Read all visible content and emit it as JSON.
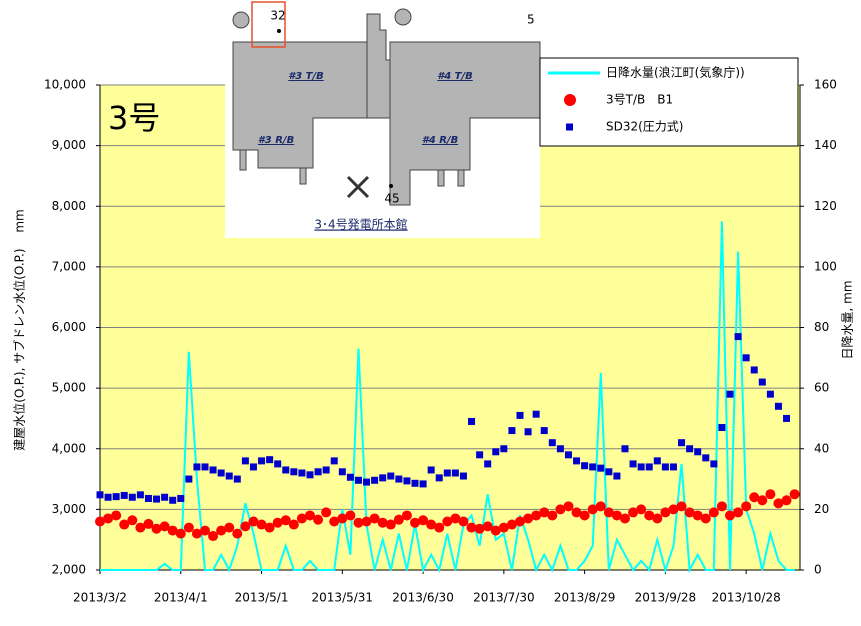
{
  "chart_data": {
    "type": "line",
    "annotation": "3号",
    "ylabel": "建屋水位(O.P.), サブドレン水位(O.P.)　 mm",
    "y2label": "日降水量, mm",
    "xlim": [
      "2013-03-02",
      "2013-11-17"
    ],
    "xticks": [
      {
        "value": "2013-03-02",
        "label": "2013/3/2"
      },
      {
        "value": "2013-04-01",
        "label": "2013/4/1"
      },
      {
        "value": "2013-05-01",
        "label": "2013/5/1"
      },
      {
        "value": "2013-05-31",
        "label": "2013/5/31"
      },
      {
        "value": "2013-06-30",
        "label": "2013/6/30"
      },
      {
        "value": "2013-07-30",
        "label": "2013/7/30"
      },
      {
        "value": "2013-08-29",
        "label": "2013/8/29"
      },
      {
        "value": "2013-09-28",
        "label": "2013/9/28"
      },
      {
        "value": "2013-10-28",
        "label": "2013/10/28"
      }
    ],
    "ylim": [
      2000,
      10000
    ],
    "yticks": [
      {
        "value": 2000,
        "label": "2,000"
      },
      {
        "value": 3000,
        "label": "3,000"
      },
      {
        "value": 4000,
        "label": "4,000"
      },
      {
        "value": 5000,
        "label": "5,000"
      },
      {
        "value": 6000,
        "label": "6,000"
      },
      {
        "value": 7000,
        "label": "7,000"
      },
      {
        "value": 8000,
        "label": "8,000"
      },
      {
        "value": 9000,
        "label": "9,000"
      },
      {
        "value": 10000,
        "label": "10,000"
      }
    ],
    "y2lim": [
      0,
      160
    ],
    "y2ticks": [
      0,
      20,
      40,
      60,
      80,
      100,
      120,
      140,
      160
    ],
    "grid": true,
    "legend": "top-right",
    "x": [
      "2013-03-02",
      "2013-03-05",
      "2013-03-08",
      "2013-03-11",
      "2013-03-14",
      "2013-03-17",
      "2013-03-20",
      "2013-03-23",
      "2013-03-26",
      "2013-03-29",
      "2013-04-01",
      "2013-04-04",
      "2013-04-07",
      "2013-04-10",
      "2013-04-13",
      "2013-04-16",
      "2013-04-19",
      "2013-04-22",
      "2013-04-25",
      "2013-04-28",
      "2013-05-01",
      "2013-05-04",
      "2013-05-07",
      "2013-05-10",
      "2013-05-13",
      "2013-05-16",
      "2013-05-19",
      "2013-05-22",
      "2013-05-25",
      "2013-05-28",
      "2013-05-31",
      "2013-06-03",
      "2013-06-06",
      "2013-06-09",
      "2013-06-12",
      "2013-06-15",
      "2013-06-18",
      "2013-06-21",
      "2013-06-24",
      "2013-06-27",
      "2013-06-30",
      "2013-07-03",
      "2013-07-06",
      "2013-07-09",
      "2013-07-12",
      "2013-07-15",
      "2013-07-18",
      "2013-07-21",
      "2013-07-24",
      "2013-07-27",
      "2013-07-30",
      "2013-08-02",
      "2013-08-05",
      "2013-08-08",
      "2013-08-11",
      "2013-08-14",
      "2013-08-17",
      "2013-08-20",
      "2013-08-23",
      "2013-08-26",
      "2013-08-29",
      "2013-09-01",
      "2013-09-04",
      "2013-09-07",
      "2013-09-10",
      "2013-09-13",
      "2013-09-16",
      "2013-09-19",
      "2013-09-22",
      "2013-09-25",
      "2013-09-28",
      "2013-10-01",
      "2013-10-04",
      "2013-10-07",
      "2013-10-10",
      "2013-10-13",
      "2013-10-16",
      "2013-10-19",
      "2013-10-22",
      "2013-10-25",
      "2013-10-28",
      "2013-10-31",
      "2013-11-03",
      "2013-11-06",
      "2013-11-09",
      "2013-11-12",
      "2013-11-15"
    ],
    "series": [
      {
        "name": "日降水量(浪江町(気象庁))",
        "color": "#00ffff",
        "style": "line",
        "axis": "y2",
        "values": [
          0,
          0,
          0,
          0,
          0,
          0,
          0,
          0,
          2,
          0,
          0,
          72,
          30,
          0,
          0,
          5,
          0,
          8,
          22,
          12,
          0,
          0,
          0,
          8,
          0,
          0,
          3,
          0,
          0,
          0,
          20,
          5,
          73,
          15,
          0,
          10,
          0,
          12,
          0,
          15,
          0,
          5,
          0,
          12,
          0,
          15,
          18,
          8,
          25,
          10,
          12,
          0,
          18,
          10,
          0,
          5,
          0,
          8,
          0,
          0,
          3,
          8,
          65,
          0,
          10,
          5,
          0,
          3,
          0,
          10,
          0,
          8,
          35,
          0,
          5,
          0,
          0,
          115,
          0,
          105,
          20,
          12,
          0,
          12,
          3,
          0,
          0
        ]
      },
      {
        "name": "SD32(圧力式)",
        "color": "#0000cc",
        "style": "scatter",
        "marker": "square",
        "values": [
          3240,
          3200,
          3210,
          3230,
          3200,
          3240,
          3180,
          3170,
          3200,
          3150,
          3180,
          3500,
          3700,
          3700,
          3650,
          3600,
          3550,
          3500,
          3800,
          3700,
          3800,
          3820,
          3750,
          3650,
          3620,
          3600,
          3570,
          3620,
          3650,
          3800,
          3620,
          3530,
          3480,
          3450,
          3480,
          3520,
          3550,
          3500,
          3470,
          3430,
          3420,
          3650,
          3520,
          3600,
          3600,
          3550,
          4450,
          3900,
          3750,
          3950,
          4000,
          4300,
          4550,
          4280,
          4570,
          4300,
          4100,
          4000,
          3900,
          3800,
          3720,
          3700,
          3680,
          3620,
          3550,
          4000,
          3750,
          3700,
          3700,
          3800,
          3700,
          3700,
          4100,
          4000,
          3950,
          3850,
          3750,
          4350,
          4900,
          5850,
          5500,
          5300,
          5100,
          4900,
          4700,
          4500,
          null
        ]
      },
      {
        "name": "3号T/B　B1",
        "color": "#ff0000",
        "style": "scatter",
        "marker": "circle",
        "values": [
          2800,
          2850,
          2900,
          2750,
          2820,
          2700,
          2760,
          2680,
          2720,
          2650,
          2600,
          2700,
          2600,
          2650,
          2560,
          2650,
          2700,
          2600,
          2720,
          2800,
          2750,
          2700,
          2780,
          2820,
          2750,
          2850,
          2900,
          2830,
          2950,
          2800,
          2850,
          2900,
          2780,
          2800,
          2850,
          2780,
          2750,
          2830,
          2900,
          2780,
          2820,
          2750,
          2700,
          2800,
          2850,
          2800,
          2700,
          2680,
          2720,
          2650,
          2700,
          2750,
          2800,
          2850,
          2900,
          2950,
          2900,
          3000,
          3050,
          2950,
          2900,
          3000,
          3050,
          2950,
          2900,
          2850,
          2950,
          3000,
          2900,
          2850,
          2950,
          3000,
          3050,
          2950,
          2900,
          2850,
          2950,
          3050,
          2900,
          2950,
          3050,
          3200,
          3150,
          3250,
          3100,
          3150,
          3250
        ]
      }
    ],
    "legend_order": [
      0,
      2,
      1
    ]
  },
  "inset": {
    "labels": [
      "32",
      "5",
      "#3 T/B",
      "#4 T/B",
      "#3 R/B",
      "#4 R/B",
      "45"
    ],
    "caption": "3･4号発電所本館"
  }
}
